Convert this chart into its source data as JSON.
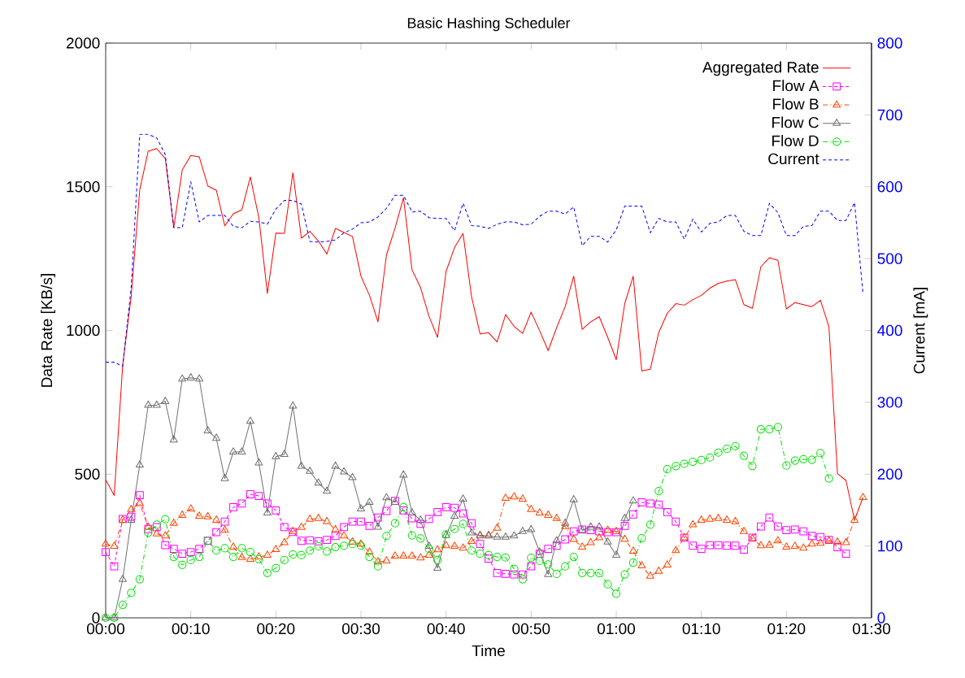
{
  "chart_data": {
    "type": "line",
    "title": "Basic Hashing Scheduler",
    "xlabel": "Time",
    "ylabel": "Data Rate [KB/s]",
    "y2label": "Current [mA]",
    "x": [
      0,
      0.0167,
      0.0333,
      0.05,
      0.0667,
      0.0833,
      0.1,
      0.1167,
      0.1333,
      0.15,
      0.1667,
      0.1833,
      0.2,
      0.2167,
      0.2333,
      0.25,
      0.2667,
      0.2833,
      0.3,
      0.3167,
      0.3333,
      0.35,
      0.3667,
      0.3833,
      0.4,
      0.4167,
      0.4333,
      0.45,
      0.4667,
      0.4833,
      0.5,
      0.5167,
      0.5333,
      0.55,
      0.5667,
      0.5833,
      0.6,
      0.6167,
      0.6333,
      0.65,
      0.6667,
      0.6833,
      0.7,
      0.7167,
      0.7333,
      0.75,
      0.7667,
      0.7833,
      0.8,
      0.8167,
      0.8333,
      0.85,
      0.8667,
      0.8833,
      0.9,
      0.9167,
      0.9333,
      0.95,
      0.9667,
      0.9833,
      1,
      1.0167,
      1.0333,
      1.05,
      1.0667,
      1.0833,
      1.1,
      1.1167,
      1.1333,
      1.15,
      1.1667,
      1.1833,
      1.2,
      1.2167,
      1.2333,
      1.25,
      1.2667,
      1.2833,
      1.3,
      1.3167,
      1.3333,
      1.35,
      1.3667,
      1.3833,
      1.4,
      1.4167,
      1.4333,
      1.45,
      1.4667,
      1.4833
    ],
    "xlim": [
      0,
      1.5
    ],
    "xticks": [
      {
        "value": 0,
        "label": "00:00"
      },
      {
        "value": 0.1667,
        "label": "00:10"
      },
      {
        "value": 0.3333,
        "label": "00:20"
      },
      {
        "value": 0.5,
        "label": "00:30"
      },
      {
        "value": 0.6667,
        "label": "00:40"
      },
      {
        "value": 0.8333,
        "label": "00:50"
      },
      {
        "value": 1,
        "label": "01:00"
      },
      {
        "value": 1.1667,
        "label": "01:10"
      },
      {
        "value": 1.3333,
        "label": "01:20"
      },
      {
        "value": 1.5,
        "label": "01:30"
      }
    ],
    "ylim": [
      0,
      2000
    ],
    "yticks": [
      0,
      500,
      1000,
      1500,
      2000
    ],
    "y2lim": [
      0,
      800
    ],
    "y2ticks": [
      0,
      100,
      200,
      300,
      400,
      500,
      600,
      700,
      800
    ],
    "legend": "top right",
    "series": [
      {
        "name": "Aggregated Rate",
        "color": "#ff0000",
        "marker": "none",
        "line_style": "solid",
        "values": [
          480,
          426,
          880,
          1120,
          1490,
          1624,
          1633,
          1598,
          1358,
          1559,
          1609,
          1604,
          1503,
          1488,
          1364,
          1406,
          1420,
          1534,
          1392,
          1129,
          1339,
          1338,
          1549,
          1321,
          1345,
          1311,
          1266,
          1355,
          1341,
          1327,
          1189,
          1122,
          1030,
          1263,
          1356,
          1462,
          1211,
          1149,
          1049,
          976,
          1205,
          1289,
          1337,
          1116,
          988,
          992,
          960,
          1055,
          1014,
          990,
          1064,
          999,
          930,
          1010,
          1083,
          1189,
          1004,
          1030,
          1048,
          976,
          898,
          1094,
          1189,
          859,
          865,
          993,
          1060,
          1093,
          1088,
          1107,
          1122,
          1147,
          1164,
          1172,
          1177,
          1090,
          1077,
          1222,
          1253,
          1244,
          1075,
          1097,
          1090,
          1083,
          1105,
          1012,
          502,
          478,
          340,
          419
        ]
      },
      {
        "name": "Flow A",
        "color": "#ff00ff",
        "marker": "square",
        "line_style": "dotted",
        "values": [
          229,
          179,
          344,
          352,
          427,
          309,
          316,
          253,
          240,
          223,
          229,
          240,
          268,
          298,
          335,
          385,
          398,
          430,
          424,
          398,
          374,
          316,
          299,
          268,
          270,
          266,
          271,
          285,
          316,
          335,
          335,
          320,
          349,
          372,
          407,
          374,
          346,
          327,
          344,
          368,
          385,
          383,
          363,
          329,
          257,
          206,
          156,
          153,
          151,
          151,
          179,
          223,
          240,
          251,
          273,
          301,
          307,
          305,
          301,
          298,
          298,
          320,
          360,
          402,
          398,
          394,
          368,
          335,
          279,
          251,
          240,
          253,
          253,
          251,
          251,
          237,
          279,
          318,
          349,
          318,
          305,
          307,
          301,
          285,
          281,
          271,
          246,
          223,
          null,
          null
        ]
      },
      {
        "name": "Flow B",
        "color": "#ff4500",
        "marker": "triangle",
        "line_style": "dashed",
        "values": [
          257,
          249,
          340,
          377,
          398,
          316,
          292,
          285,
          329,
          357,
          379,
          354,
          352,
          340,
          305,
          246,
          210,
          204,
          212,
          218,
          238,
          262,
          301,
          315,
          343,
          346,
          335,
          307,
          285,
          264,
          257,
          229,
          195,
          198,
          215,
          215,
          215,
          209,
          218,
          237,
          251,
          249,
          243,
          266,
          287,
          287,
          312,
          416,
          421,
          413,
          377,
          365,
          357,
          346,
          318,
          273,
          246,
          262,
          279,
          305,
          301,
          273,
          232,
          181,
          145,
          162,
          184,
          234,
          279,
          324,
          340,
          343,
          346,
          340,
          335,
          301,
          276,
          251,
          253,
          268,
          246,
          249,
          243,
          257,
          260,
          268,
          264,
          262,
          340,
          419
        ]
      },
      {
        "name": "Flow C",
        "color": "#707070",
        "marker": "triangle",
        "line_style": "solid",
        "values": [
          0,
          0,
          134,
          340,
          532,
          740,
          740,
          753,
          619,
          831,
          835,
          831,
          651,
          625,
          485,
          577,
          577,
          684,
          539,
          365,
          561,
          569,
          737,
          528,
          510,
          469,
          441,
          528,
          508,
          488,
          379,
          402,
          316,
          418,
          402,
          497,
          365,
          340,
          249,
          173,
          287,
          354,
          413,
          296,
          285,
          285,
          281,
          281,
          285,
          301,
          307,
          229,
          151,
          268,
          329,
          411,
          305,
          316,
          316,
          264,
          218,
          346,
          407,
          null,
          null,
          null,
          null,
          null,
          null,
          null,
          null,
          null,
          null,
          null,
          null,
          null,
          null,
          null,
          null,
          null,
          null,
          null,
          null,
          null,
          null,
          null,
          null,
          null,
          null,
          null
        ]
      },
      {
        "name": "Flow D",
        "color": "#00e000",
        "marker": "circle",
        "line_style": "dashed",
        "values": [
          0,
          0,
          45,
          87,
          134,
          296,
          324,
          343,
          212,
          184,
          201,
          212,
          268,
          234,
          242,
          212,
          242,
          229,
          204,
          156,
          173,
          201,
          220,
          218,
          234,
          249,
          231,
          246,
          251,
          257,
          251,
          212,
          179,
          285,
          329,
          385,
          287,
          276,
          240,
          201,
          290,
          309,
          327,
          234,
          223,
          218,
          212,
          210,
          170,
          134,
          209,
          198,
          186,
          153,
          179,
          212,
          156,
          156,
          156,
          117,
          84,
          151,
          192,
          277,
          324,
          441,
          517,
          528,
          536,
          543,
          549,
          558,
          575,
          588,
          597,
          564,
          528,
          656,
          656,
          664,
          530,
          547,
          552,
          550,
          573,
          485,
          null,
          null,
          null,
          null
        ]
      },
      {
        "name": "Current",
        "color": "#0000ff",
        "marker": "none",
        "line_style": "dotted",
        "axis": "y2",
        "values": [
          356,
          356,
          350,
          460,
          673,
          673,
          668,
          645,
          543,
          543,
          607,
          551,
          560,
          560,
          560,
          545,
          543,
          552,
          551,
          548,
          569,
          581,
          581,
          576,
          524,
          523,
          524,
          526,
          536,
          541,
          550,
          551,
          558,
          570,
          588,
          588,
          565,
          566,
          557,
          556,
          556,
          539,
          577,
          546,
          545,
          542,
          548,
          551,
          551,
          547,
          548,
          559,
          566,
          566,
          562,
          572,
          518,
          531,
          531,
          523,
          540,
          573,
          573,
          573,
          536,
          556,
          551,
          551,
          527,
          555,
          537,
          549,
          551,
          560,
          560,
          538,
          532,
          532,
          577,
          564,
          532,
          532,
          545,
          546,
          566,
          566,
          553,
          553,
          578,
          451
        ]
      }
    ]
  }
}
